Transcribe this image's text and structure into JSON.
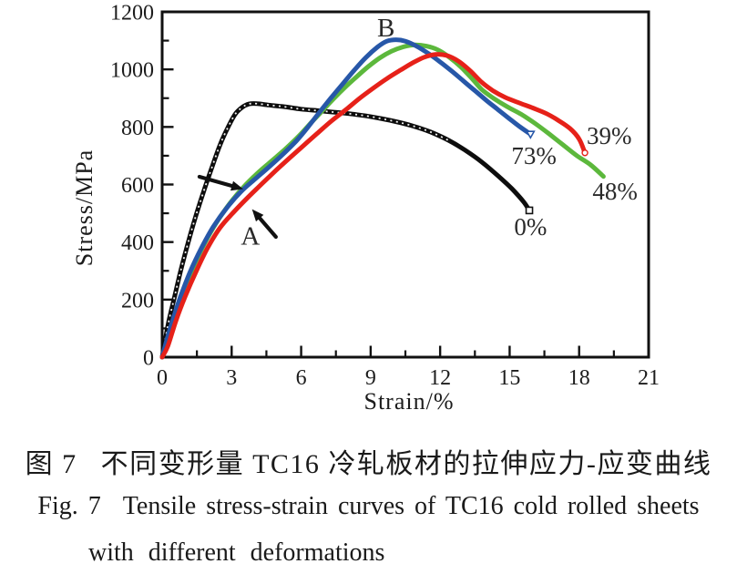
{
  "captions": {
    "zh_fig_label": "图 7",
    "zh_text": "不同变形量 TC16 冷轧板材的拉伸应力-应变曲线",
    "en_fig_label": "Fig. 7",
    "en_text": "Tensile stress-strain curves of TC16 cold rolled sheets",
    "en_line2": "with different deformations"
  },
  "chart_data": {
    "type": "line",
    "title": "",
    "xlabel": "Strain/%",
    "ylabel": "Stress/MPa",
    "xlim": [
      0,
      21
    ],
    "ylim": [
      0,
      1200
    ],
    "grid": false,
    "legend_position": "none (curves labeled inline with deformation percentages)",
    "x_major_ticks": [
      0,
      3,
      6,
      9,
      12,
      15,
      18,
      21
    ],
    "x_minor_ticks": [
      1.5,
      4.5,
      7.5,
      10.5,
      13.5,
      16.5,
      19.5
    ],
    "y_major_ticks": [
      0,
      200,
      400,
      600,
      800,
      1000,
      1200
    ],
    "y_minor_ticks": [
      100,
      300,
      500,
      700,
      900,
      1100
    ],
    "series": [
      {
        "name": "0%",
        "deformation": "0%",
        "color": "#0d0d0d",
        "end_marker": "open-square",
        "textured": true,
        "points": [
          [
            0,
            0
          ],
          [
            0.12,
            55
          ],
          [
            0.3,
            130
          ],
          [
            0.55,
            215
          ],
          [
            0.8,
            300
          ],
          [
            1.1,
            392
          ],
          [
            1.45,
            490
          ],
          [
            1.8,
            578
          ],
          [
            2.15,
            660
          ],
          [
            2.5,
            738
          ],
          [
            2.85,
            800
          ],
          [
            3.15,
            844
          ],
          [
            3.45,
            868
          ],
          [
            3.75,
            880
          ],
          [
            4.1,
            881
          ],
          [
            4.6,
            876
          ],
          [
            5.2,
            871
          ],
          [
            6.0,
            862
          ],
          [
            6.8,
            856
          ],
          [
            7.6,
            850
          ],
          [
            8.4,
            843
          ],
          [
            9.2,
            833
          ],
          [
            10.0,
            820
          ],
          [
            10.8,
            804
          ],
          [
            11.6,
            782
          ],
          [
            12.4,
            752
          ],
          [
            13.1,
            718
          ],
          [
            13.8,
            678
          ],
          [
            14.5,
            630
          ],
          [
            15.1,
            585
          ],
          [
            15.6,
            540
          ],
          [
            15.85,
            510
          ]
        ]
      },
      {
        "name": "48%",
        "deformation": "48%",
        "color": "#5cb83c",
        "end_marker": "none",
        "textured": false,
        "points": [
          [
            0,
            0
          ],
          [
            0.25,
            50
          ],
          [
            0.55,
            138
          ],
          [
            0.9,
            220
          ],
          [
            1.3,
            305
          ],
          [
            1.8,
            390
          ],
          [
            2.3,
            462
          ],
          [
            2.9,
            532
          ],
          [
            3.5,
            590
          ],
          [
            4.1,
            638
          ],
          [
            4.7,
            680
          ],
          [
            5.3,
            722
          ],
          [
            5.9,
            768
          ],
          [
            6.4,
            812
          ],
          [
            6.9,
            855
          ],
          [
            7.4,
            898
          ],
          [
            7.9,
            938
          ],
          [
            8.4,
            975
          ],
          [
            8.9,
            1010
          ],
          [
            9.4,
            1040
          ],
          [
            9.9,
            1063
          ],
          [
            10.4,
            1078
          ],
          [
            10.9,
            1085
          ],
          [
            11.4,
            1081
          ],
          [
            11.9,
            1068
          ],
          [
            12.4,
            1042
          ],
          [
            12.9,
            1008
          ],
          [
            13.4,
            966
          ],
          [
            13.8,
            930
          ],
          [
            14.3,
            900
          ],
          [
            14.9,
            870
          ],
          [
            15.5,
            844
          ],
          [
            16.1,
            812
          ],
          [
            16.7,
            776
          ],
          [
            17.3,
            738
          ],
          [
            17.9,
            700
          ],
          [
            18.5,
            668
          ],
          [
            19.05,
            628
          ]
        ]
      },
      {
        "name": "73%",
        "deformation": "73%",
        "color": "#2757a8",
        "end_marker": "open-triangle-down",
        "textured": false,
        "points": [
          [
            0,
            0
          ],
          [
            0.2,
            60
          ],
          [
            0.5,
            140
          ],
          [
            0.8,
            212
          ],
          [
            1.2,
            295
          ],
          [
            1.7,
            380
          ],
          [
            2.2,
            452
          ],
          [
            2.8,
            520
          ],
          [
            3.4,
            575
          ],
          [
            4.0,
            618
          ],
          [
            4.6,
            660
          ],
          [
            5.2,
            704
          ],
          [
            5.8,
            752
          ],
          [
            6.3,
            800
          ],
          [
            6.8,
            852
          ],
          [
            7.3,
            902
          ],
          [
            7.8,
            950
          ],
          [
            8.3,
            998
          ],
          [
            8.8,
            1042
          ],
          [
            9.3,
            1078
          ],
          [
            9.7,
            1098
          ],
          [
            10.1,
            1103
          ],
          [
            10.5,
            1098
          ],
          [
            11.0,
            1080
          ],
          [
            11.5,
            1055
          ],
          [
            12.0,
            1026
          ],
          [
            12.5,
            994
          ],
          [
            13.0,
            960
          ],
          [
            13.5,
            926
          ],
          [
            14.0,
            892
          ],
          [
            14.5,
            860
          ],
          [
            15.0,
            828
          ],
          [
            15.45,
            800
          ],
          [
            15.9,
            775
          ]
        ]
      },
      {
        "name": "39%",
        "deformation": "39%",
        "color": "#e62119",
        "end_marker": "open-circle",
        "textured": false,
        "points": [
          [
            0,
            0
          ],
          [
            0.25,
            40
          ],
          [
            0.6,
            128
          ],
          [
            1.0,
            212
          ],
          [
            1.45,
            295
          ],
          [
            1.95,
            378
          ],
          [
            2.5,
            450
          ],
          [
            3.1,
            505
          ],
          [
            3.7,
            555
          ],
          [
            4.3,
            602
          ],
          [
            4.9,
            648
          ],
          [
            5.5,
            692
          ],
          [
            6.1,
            735
          ],
          [
            6.7,
            778
          ],
          [
            7.3,
            820
          ],
          [
            7.9,
            858
          ],
          [
            8.5,
            898
          ],
          [
            9.1,
            934
          ],
          [
            9.7,
            968
          ],
          [
            10.3,
            998
          ],
          [
            10.8,
            1022
          ],
          [
            11.3,
            1042
          ],
          [
            11.8,
            1052
          ],
          [
            12.3,
            1048
          ],
          [
            12.8,
            1028
          ],
          [
            13.3,
            995
          ],
          [
            13.8,
            955
          ],
          [
            14.3,
            925
          ],
          [
            14.8,
            903
          ],
          [
            15.4,
            884
          ],
          [
            16.0,
            866
          ],
          [
            16.6,
            846
          ],
          [
            17.1,
            823
          ],
          [
            17.6,
            795
          ],
          [
            18.0,
            758
          ],
          [
            18.25,
            710
          ]
        ]
      }
    ],
    "annotations": [
      {
        "kind": "letter",
        "text": "B",
        "x": 9.66,
        "y": 1143
      },
      {
        "kind": "letter",
        "text": "A",
        "x": 3.81,
        "y": 420
      },
      {
        "kind": "pct",
        "text": "0%",
        "x": 15.9,
        "y": 452
      },
      {
        "kind": "pct",
        "text": "73%",
        "x": 16.05,
        "y": 700
      },
      {
        "kind": "pct",
        "text": "39%",
        "x": 19.3,
        "y": 770
      },
      {
        "kind": "pct",
        "text": "48%",
        "x": 19.55,
        "y": 577
      }
    ],
    "arrows": [
      {
        "from": [
          1.61,
          627
        ],
        "to": [
          3.5,
          584
        ]
      },
      {
        "from": [
          4.91,
          418
        ],
        "to": [
          3.88,
          514
        ]
      }
    ]
  }
}
